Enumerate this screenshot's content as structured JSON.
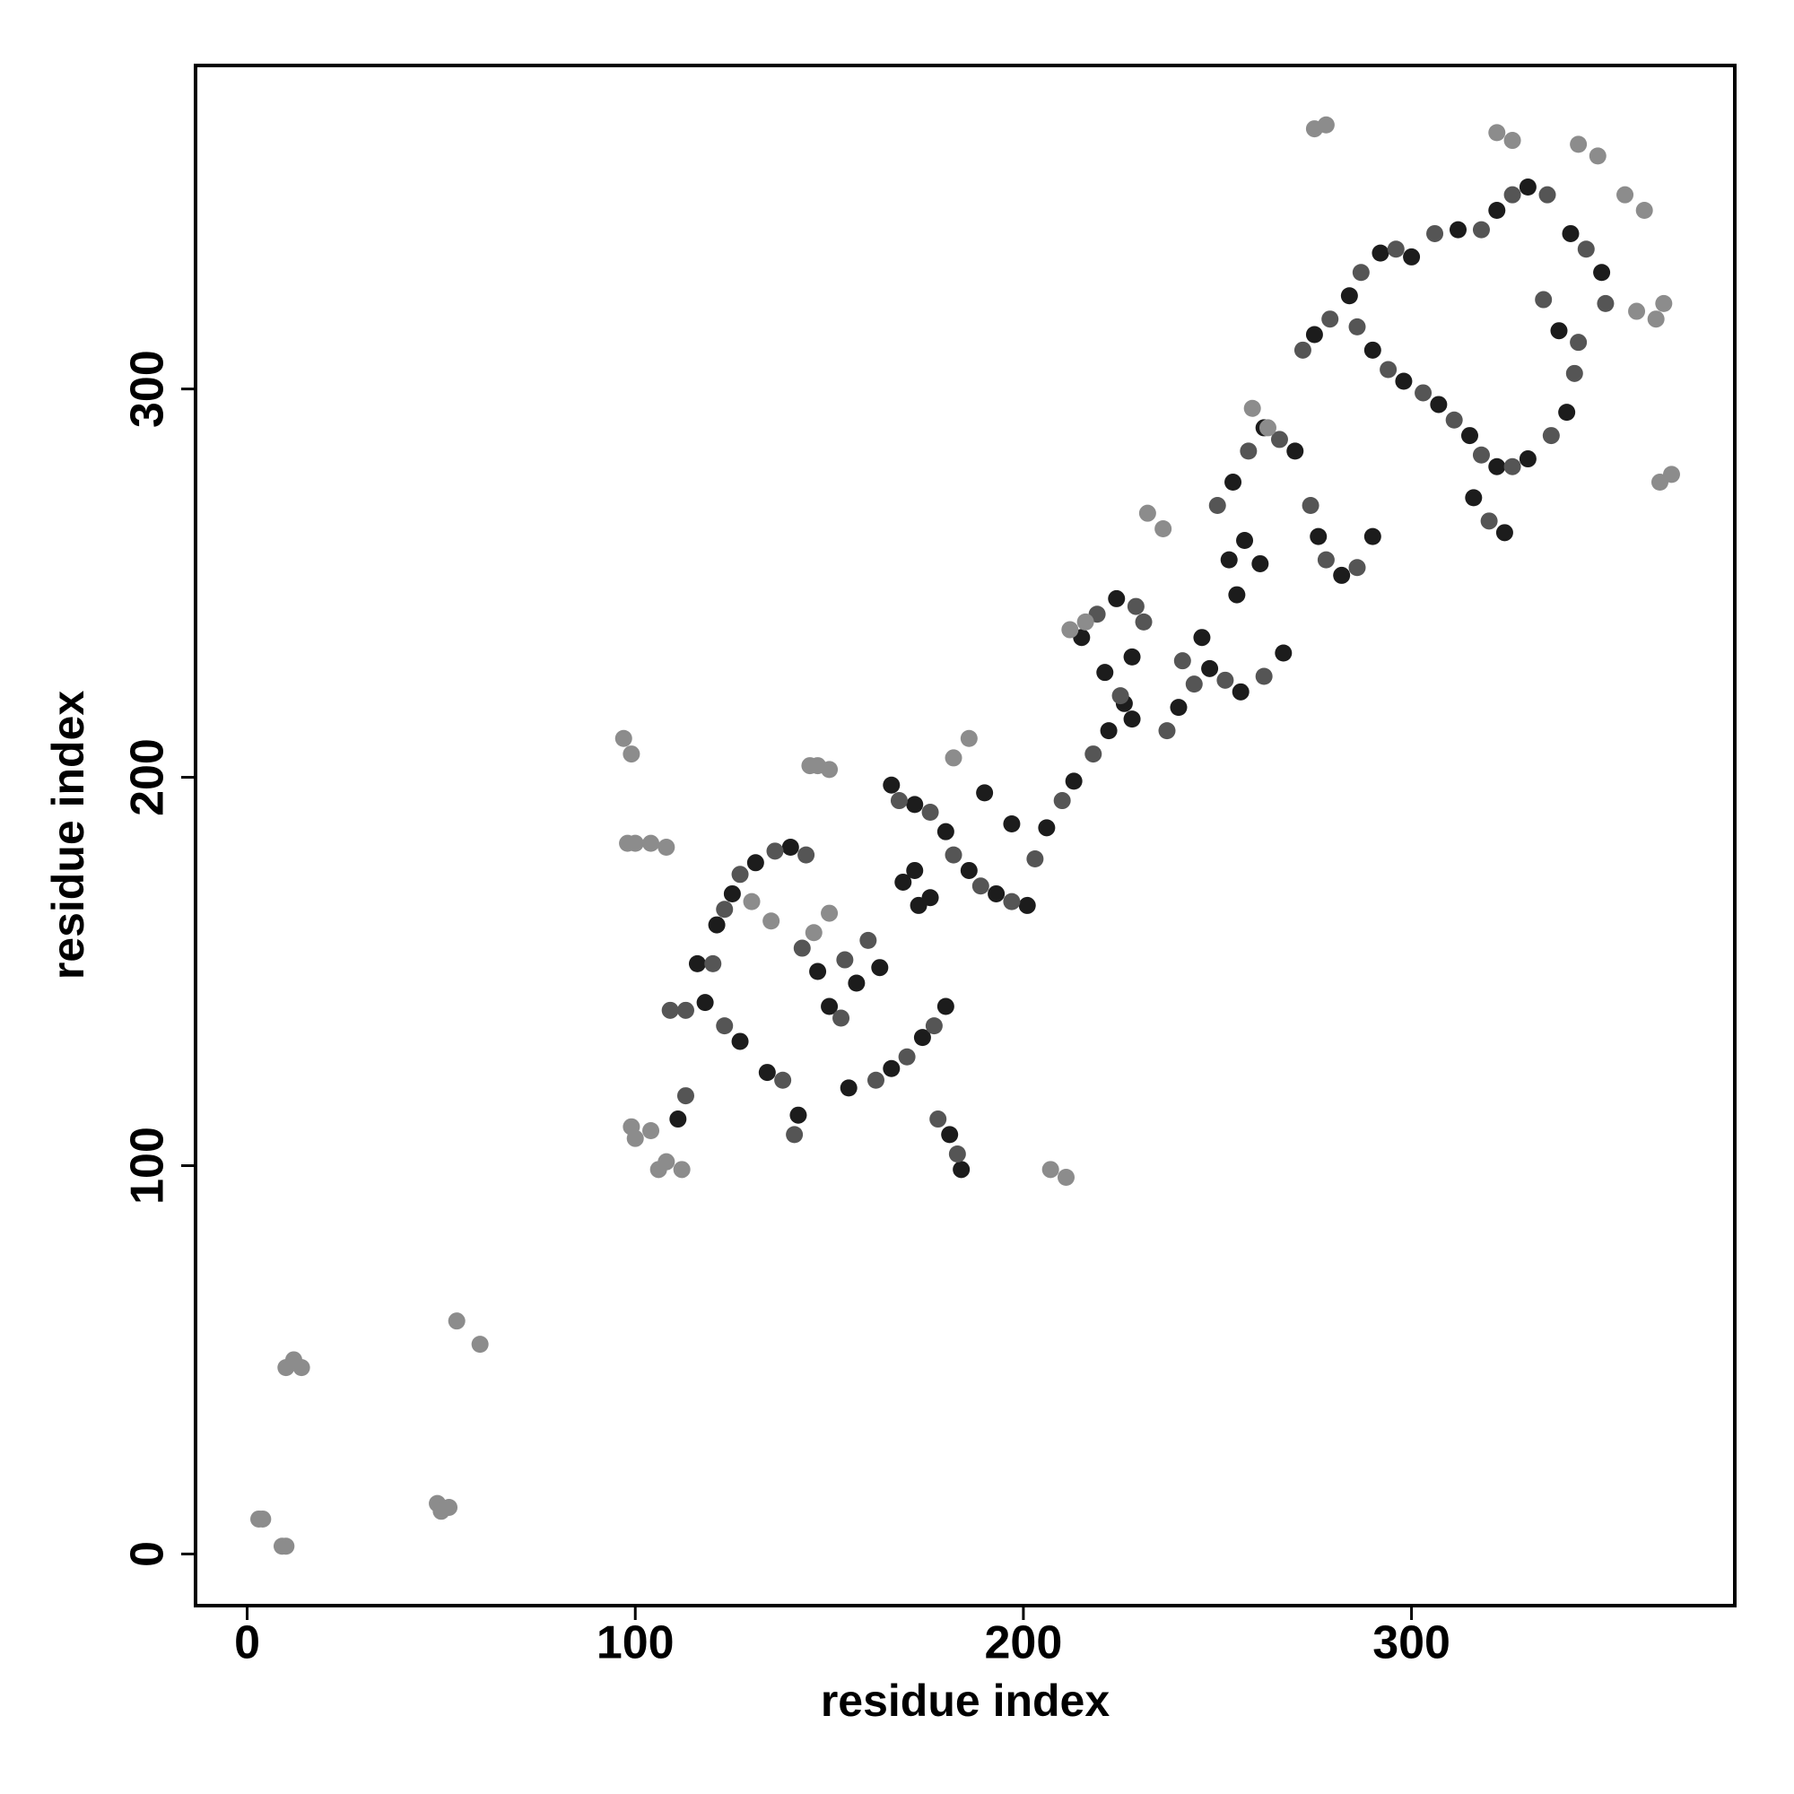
{
  "chart_data": {
    "type": "scatter",
    "x_label": "residue index",
    "y_label": "residue index",
    "xlim": [
      -13.3,
      383.3
    ],
    "ylim": [
      -13.3,
      383.3
    ],
    "xticks": [
      0,
      100,
      200,
      300
    ],
    "yticks": [
      0,
      100,
      200,
      300
    ],
    "series": [
      {
        "color": "#1c1c1c",
        "x": [
          190,
          197,
          253,
          255,
          257,
          261,
          221,
          226,
          228,
          169,
          172,
          173,
          176,
          166,
          172,
          180,
          186,
          193,
          201,
          206,
          213,
          222,
          228,
          215,
          224,
          240,
          248,
          256,
          267,
          246,
          254,
          262,
          270,
          276,
          282,
          290,
          275,
          284,
          292,
          300,
          312,
          322,
          330,
          341,
          349,
          290,
          298,
          307,
          315,
          322,
          330,
          340,
          316,
          324,
          338,
          121,
          125,
          131,
          140,
          134,
          142,
          127,
          118,
          111,
          150,
          155,
          166,
          174,
          180,
          181,
          184,
          147,
          157,
          163,
          116
        ],
        "y": [
          196,
          188,
          256,
          247,
          261,
          255,
          227,
          219,
          215,
          173,
          176,
          167,
          169,
          198,
          193,
          186,
          176,
          170,
          167,
          187,
          199,
          212,
          231,
          236,
          246,
          218,
          228,
          222,
          232,
          236,
          276,
          290,
          284,
          262,
          252,
          262,
          314,
          324,
          335,
          334,
          341,
          346,
          352,
          340,
          330,
          310,
          302,
          296,
          288,
          280,
          282,
          294,
          272,
          263,
          315,
          162,
          170,
          178,
          182,
          124,
          113,
          132,
          142,
          112,
          141,
          120,
          125,
          133,
          141,
          108,
          99,
          150,
          147,
          151,
          152
        ]
      },
      {
        "color": "#555555",
        "x": [
          168,
          176,
          182,
          189,
          197,
          203,
          210,
          218,
          225,
          231,
          219,
          229,
          237,
          244,
          252,
          262,
          241,
          250,
          258,
          266,
          274,
          278,
          286,
          272,
          279,
          287,
          296,
          306,
          318,
          326,
          335,
          345,
          286,
          294,
          303,
          311,
          318,
          326,
          336,
          342,
          343,
          320,
          334,
          350,
          123,
          127,
          136,
          144,
          138,
          141,
          123,
          113,
          109,
          113,
          153,
          162,
          170,
          177,
          178,
          183,
          143,
          154,
          160,
          120
        ],
        "y": [
          194,
          191,
          180,
          172,
          168,
          179,
          194,
          206,
          221,
          240,
          242,
          244,
          212,
          224,
          225,
          226,
          230,
          270,
          284,
          287,
          270,
          256,
          254,
          310,
          318,
          330,
          336,
          340,
          341,
          350,
          350,
          336,
          316,
          305,
          299,
          292,
          283,
          280,
          288,
          304,
          312,
          266,
          323,
          322,
          166,
          175,
          181,
          180,
          122,
          108,
          136,
          140,
          140,
          118,
          138,
          122,
          128,
          136,
          112,
          103,
          156,
          153,
          158,
          152
        ]
      },
      {
        "color": "#8c8c8c",
        "x": [
          3,
          4,
          9,
          10,
          10,
          12,
          14,
          49,
          50,
          52,
          54,
          60,
          97,
          99,
          98,
          100,
          104,
          108,
          99,
          100,
          104,
          106,
          108,
          112,
          207,
          211,
          145,
          147,
          150,
          275,
          278,
          326,
          322,
          343,
          348,
          355,
          360,
          358,
          363,
          365,
          367,
          364,
          259,
          263,
          232,
          236,
          212,
          216,
          186,
          182,
          150,
          146,
          130,
          135
        ],
        "y": [
          9,
          9,
          2,
          2,
          48,
          50,
          48,
          13,
          11,
          12,
          60,
          54,
          210,
          206,
          183,
          183,
          183,
          182,
          110,
          107,
          109,
          99,
          101,
          99,
          99,
          97,
          203,
          203,
          202,
          367,
          368,
          364,
          366,
          363,
          360,
          350,
          346,
          320,
          318,
          322,
          278,
          276,
          295,
          290,
          268,
          264,
          238,
          240,
          210,
          205,
          165,
          160,
          168,
          163
        ]
      }
    ]
  }
}
